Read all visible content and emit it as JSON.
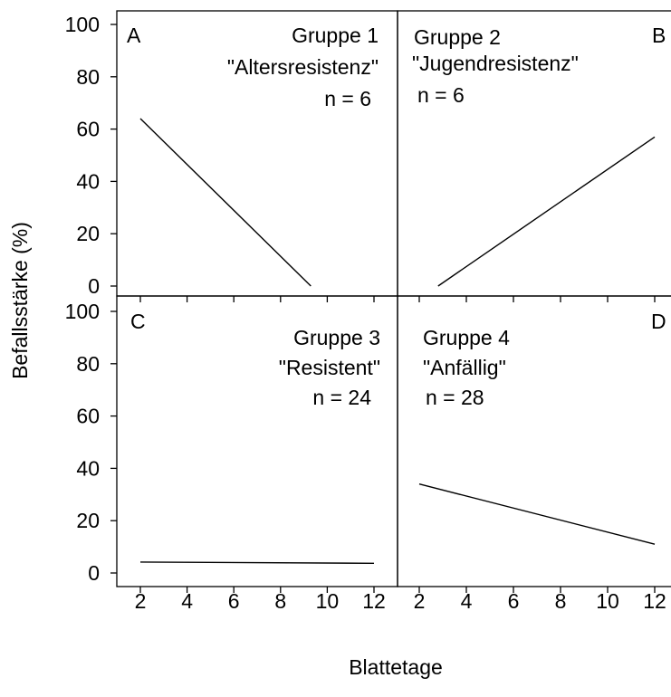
{
  "chart_data": {
    "type": "line",
    "x_label": "Blattetage",
    "y_label": "Befallsstärke (%)",
    "x_ticks": [
      2,
      4,
      6,
      8,
      10,
      12
    ],
    "y_ticks": [
      0,
      20,
      40,
      60,
      80,
      100
    ],
    "panels": [
      {
        "letter": "A",
        "group": "Gruppe 1",
        "label": "\"Altersresistenz\"",
        "n": "n = 6",
        "series": [
          {
            "x": [
              2,
              9.3
            ],
            "y": [
              64,
              0
            ]
          }
        ]
      },
      {
        "letter": "B",
        "group": "Gruppe 2",
        "label": "\"Jugendresistenz\"",
        "n": "n = 6",
        "series": [
          {
            "x": [
              2.8,
              12
            ],
            "y": [
              0,
              57
            ]
          }
        ]
      },
      {
        "letter": "C",
        "group": "Gruppe 3",
        "label": "\"Resistent\"",
        "n": "n = 24",
        "series": [
          {
            "x": [
              2,
              12
            ],
            "y": [
              4.2,
              3.7
            ]
          }
        ]
      },
      {
        "letter": "D",
        "group": "Gruppe 4",
        "label": "\"Anfällig\"",
        "n": "n = 28",
        "series": [
          {
            "x": [
              2,
              12
            ],
            "y": [
              34,
              11
            ]
          }
        ]
      }
    ]
  }
}
